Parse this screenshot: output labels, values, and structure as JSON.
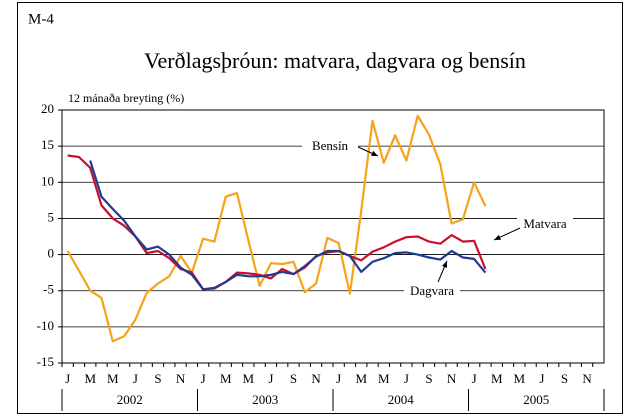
{
  "chart_data": {
    "type": "line",
    "label": "M-4",
    "title": "Verðlagsþróun: matvara, dagvara og bensín",
    "y_label": "12 mánaða breyting (%)",
    "categories": [
      "J",
      null,
      "M",
      null,
      "M",
      null,
      "J",
      null,
      "S",
      null,
      "N",
      null,
      "J",
      null,
      "M",
      null,
      "M",
      null,
      "J",
      null,
      "S",
      null,
      "N",
      null,
      "J",
      null,
      "M",
      null,
      "M",
      null,
      "J",
      null,
      "S",
      null,
      "N",
      null,
      "J",
      null,
      "M",
      null,
      "M",
      null,
      "J",
      null,
      "S",
      null,
      "N",
      null
    ],
    "years": [
      "2002",
      "2003",
      "2004",
      "2005"
    ],
    "ylim": [
      -15,
      20
    ],
    "yticks": [
      -15,
      -10,
      -5,
      0,
      5,
      10,
      15,
      20
    ],
    "grid": true,
    "series": [
      {
        "name": "Bensín",
        "color": "#f5a31a",
        "values": [
          0.5,
          -2.2,
          -5,
          -6,
          -12,
          -11.3,
          -9,
          -5.3,
          -4,
          -3,
          -0.2,
          -2.5,
          2.2,
          1.8,
          8,
          8.5,
          2,
          -4.3,
          -1.2,
          -1.3,
          -1,
          -5.2,
          -4,
          2.3,
          1.6,
          -5.4,
          6,
          18.5,
          12.7,
          16.5,
          13,
          19.2,
          16.6,
          12.5,
          4.3,
          4.9,
          10,
          6.7,
          null,
          null,
          null,
          null,
          null,
          null,
          null,
          null,
          null,
          null
        ]
      },
      {
        "name": "Matvara",
        "color": "#c8102e",
        "values": [
          13.7,
          13.5,
          12,
          6.8,
          5,
          4,
          2.5,
          0.2,
          0.5,
          -0.5,
          -2,
          -2.5,
          -4.8,
          -4.7,
          -3.8,
          -2.5,
          -2.6,
          -2.8,
          -3.3,
          -2,
          -2.7,
          -1.8,
          -0.2,
          0.3,
          0.5,
          -0.2,
          -0.8,
          0.4,
          1,
          1.8,
          2.4,
          2.5,
          1.8,
          1.5,
          2.7,
          1.8,
          1.9,
          -2,
          null,
          null,
          null,
          null,
          null,
          null,
          null,
          null,
          null,
          null
        ]
      },
      {
        "name": "Dagvara",
        "color": "#1f3a93",
        "values": [
          null,
          null,
          13,
          8,
          6.3,
          4.7,
          2.5,
          0.7,
          1.1,
          0,
          -1.8,
          -2.8,
          -4.8,
          -4.6,
          -3.8,
          -2.8,
          -3,
          -3,
          -2.8,
          -2.4,
          -2.7,
          -1.6,
          -0.3,
          0.5,
          0.5,
          -0.2,
          -2.4,
          -1,
          -0.5,
          0.2,
          0.3,
          0,
          -0.4,
          -0.7,
          0.5,
          -0.4,
          -0.6,
          -2.5,
          null,
          null,
          null,
          null,
          null,
          null,
          null,
          null,
          null,
          null
        ]
      }
    ]
  }
}
